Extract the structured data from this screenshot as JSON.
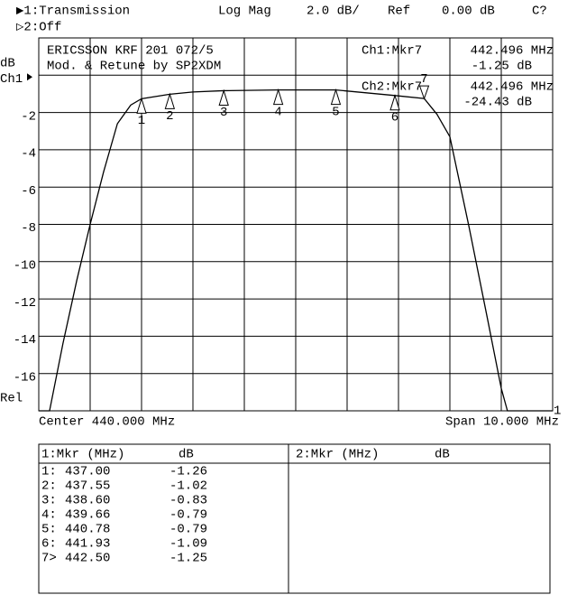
{
  "header": {
    "ch1": "▶1:Transmission",
    "format": "Log Mag",
    "scale": "2.0 dB/",
    "ref_label": "Ref",
    "ref_value": "0.00 dB",
    "cal": "C?",
    "ch2": "▷2:Off"
  },
  "chart_data": {
    "type": "line",
    "annotation": [
      "ERICSSON KRF 201 072/5",
      "Mod. & Retune by SP2XDM"
    ],
    "readout": [
      [
        "Ch1:Mkr7",
        "442.496 MHz",
        "-1.25 dB"
      ],
      [
        "Ch2:Mkr7",
        "442.496 MHz",
        "-24.43 dB"
      ]
    ],
    "y_label": "dB",
    "center": "Center 440.000 MHz",
    "span": "Span 10.000 MHz",
    "trace_label": "1",
    "xlim": [
      435,
      445
    ],
    "ylim": [
      -18,
      2
    ],
    "yticks": [
      {
        "value": 0,
        "label": "Ch1"
      },
      -2,
      -4,
      -6,
      -8,
      -10,
      -12,
      -14,
      -16,
      {
        "value": -18,
        "label": "Rel"
      }
    ],
    "grid": true,
    "series": [
      {
        "color": "#000000",
        "x": [
          435,
          435.21,
          435.47,
          435.74,
          436,
          436.26,
          436.53,
          436.79,
          437,
          437.55,
          438,
          438.6,
          439.66,
          440.78,
          441.93,
          442.5,
          442.75,
          443,
          443.37,
          443.72,
          444,
          444.12,
          445
        ],
        "values": [
          -18,
          -18,
          -14.4,
          -11,
          -8,
          -5.2,
          -2.6,
          -1.6,
          -1.26,
          -1.02,
          -0.9,
          -0.83,
          -0.79,
          -0.79,
          -1.09,
          -1.25,
          -2.1,
          -3.3,
          -8.1,
          -12.9,
          -16.8,
          -18,
          -18
        ]
      }
    ],
    "markers": [
      {
        "label": "1",
        "x": 437.0,
        "y": -1.26
      },
      {
        "label": "2",
        "x": 437.55,
        "y": -1.02
      },
      {
        "label": "3",
        "x": 438.6,
        "y": -0.83
      },
      {
        "label": "4",
        "x": 439.66,
        "y": -0.79
      },
      {
        "label": "5",
        "x": 440.78,
        "y": -0.79
      },
      {
        "label": "6",
        "x": 441.93,
        "y": -1.09
      },
      {
        "label": "7",
        "x": 442.5,
        "y": -1.25
      }
    ]
  },
  "table": {
    "left_header": [
      "1:Mkr (MHz)",
      "dB"
    ],
    "right_header": [
      "2:Mkr (MHz)",
      "dB"
    ],
    "rows": [
      [
        "1:",
        "437.00",
        "-1.26"
      ],
      [
        "2:",
        "437.55",
        "-1.02"
      ],
      [
        "3:",
        "438.60",
        "-0.83"
      ],
      [
        "4:",
        "439.66",
        "-0.79"
      ],
      [
        "5:",
        "440.78",
        "-0.79"
      ],
      [
        "6:",
        "441.93",
        "-1.09"
      ],
      [
        "7>",
        "442.50",
        "-1.25"
      ]
    ]
  }
}
